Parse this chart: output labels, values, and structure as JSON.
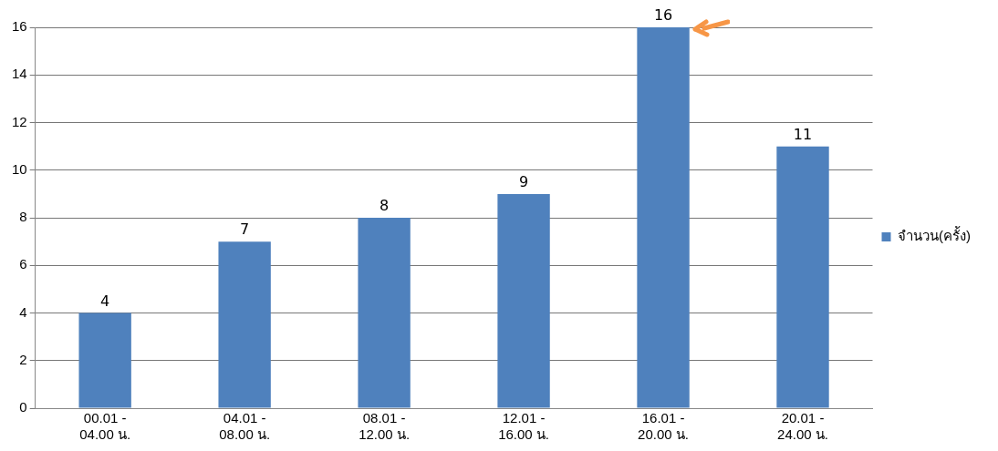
{
  "chart_data": {
    "type": "bar",
    "categories": [
      "00.01 - 04.00 น.",
      "04.01 - 08.00 น.",
      "08.01 - 12.00 น.",
      "12.01 - 16.00 น.",
      "16.01 - 20.00 น.",
      "20.01 - 24.00 น."
    ],
    "series": [
      {
        "name": "จำนวน(ครั้ง)",
        "color": "#4f81bd",
        "values": [
          4,
          7,
          8,
          9,
          16,
          11
        ]
      }
    ],
    "ylim": [
      0,
      16
    ],
    "yticks": [
      0,
      2,
      4,
      6,
      8,
      10,
      12,
      14,
      16
    ],
    "grid": "y",
    "legend": "right",
    "data_labels": true
  }
}
